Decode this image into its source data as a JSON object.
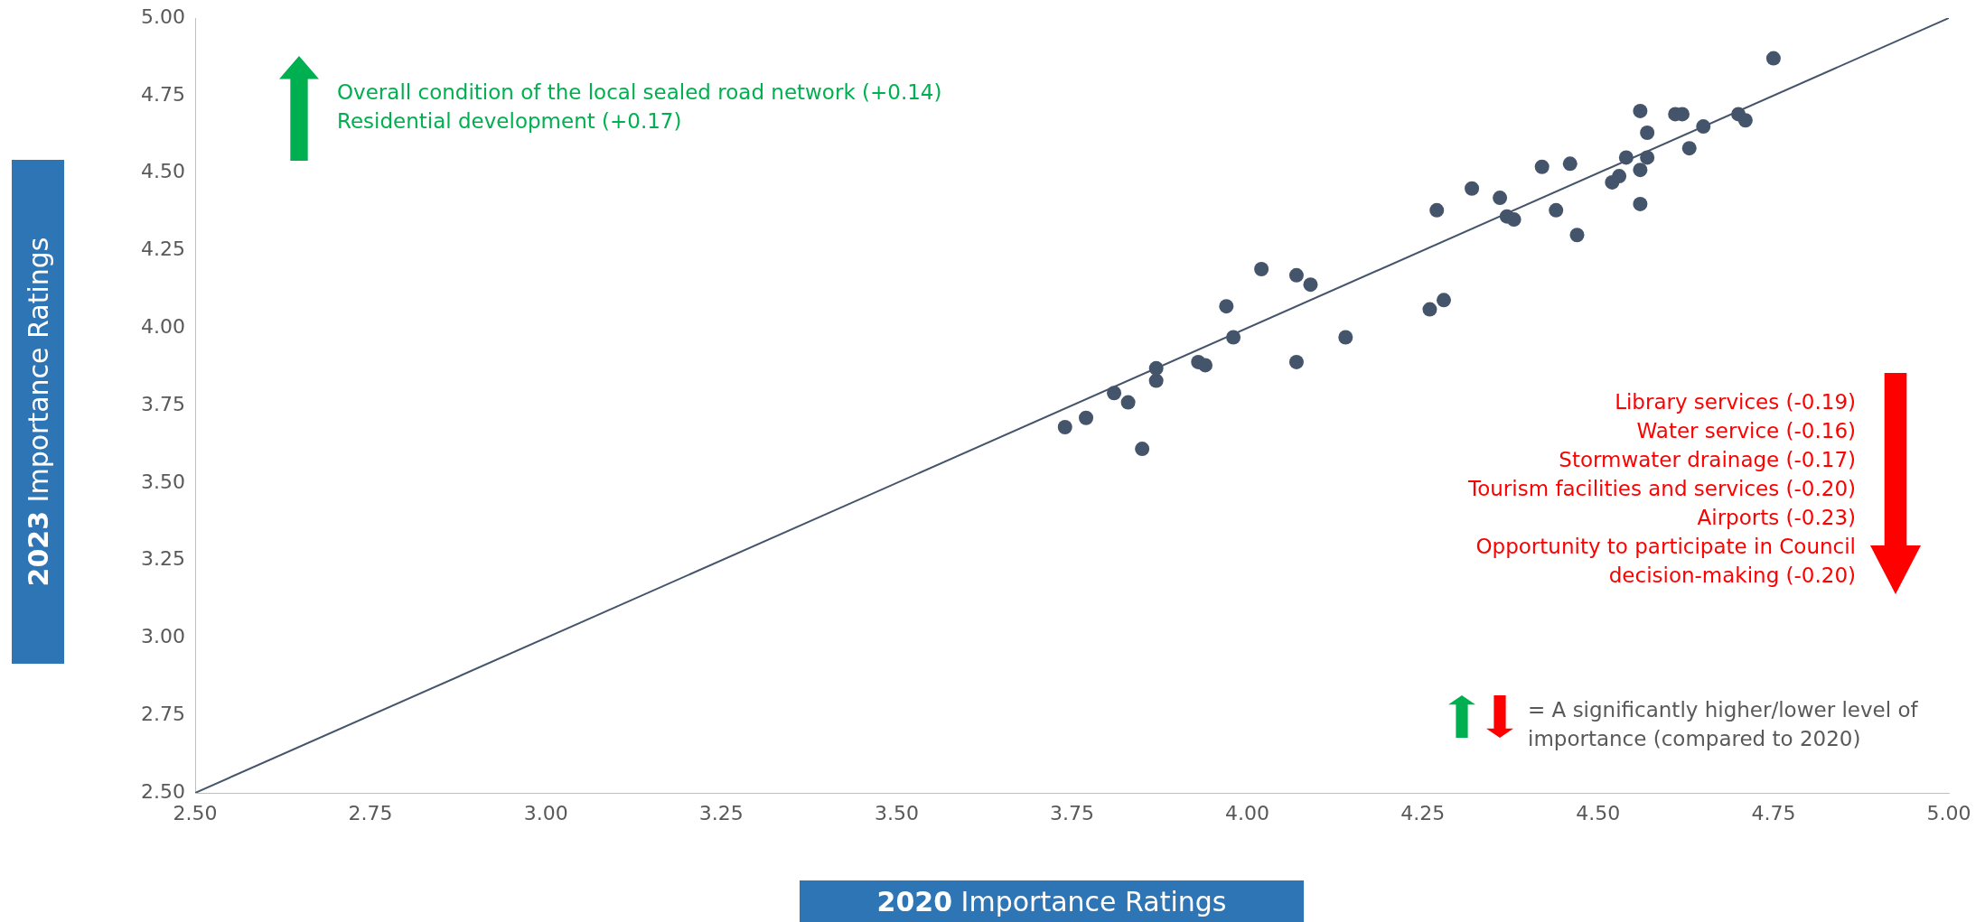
{
  "chart_data": {
    "type": "scatter",
    "xlabel": "2020 Importance Ratings",
    "ylabel": "2023 Importance Ratings",
    "xlim": [
      2.5,
      5
    ],
    "ylim": [
      2.5,
      5
    ],
    "xticks": [
      {
        "value": 2.5,
        "label": "2.50"
      },
      {
        "value": 2.75,
        "label": "2.75"
      },
      {
        "value": 3,
        "label": "3.00"
      },
      {
        "value": 3.25,
        "label": "3.25"
      },
      {
        "value": 3.5,
        "label": "3.50"
      },
      {
        "value": 3.75,
        "label": "3.75"
      },
      {
        "value": 4,
        "label": "4.00"
      },
      {
        "value": 4.25,
        "label": "4.25"
      },
      {
        "value": 4.5,
        "label": "4.50"
      },
      {
        "value": 4.75,
        "label": "4.75"
      },
      {
        "value": 5,
        "label": "5.00"
      }
    ],
    "yticks": [
      {
        "value": 2.5,
        "label": "2.50"
      },
      {
        "value": 2.75,
        "label": "2.75"
      },
      {
        "value": 3,
        "label": "3.00"
      },
      {
        "value": 3.25,
        "label": "3.25"
      },
      {
        "value": 3.5,
        "label": "3.50"
      },
      {
        "value": 3.75,
        "label": "3.75"
      },
      {
        "value": 4,
        "label": "4.00"
      },
      {
        "value": 4.25,
        "label": "4.25"
      },
      {
        "value": 4.5,
        "label": "4.50"
      },
      {
        "value": 4.75,
        "label": "4.75"
      },
      {
        "value": 5,
        "label": "5.00"
      }
    ],
    "grid": false,
    "legend": false,
    "marker": "circle",
    "series": [
      {
        "color": "#44546a",
        "x": [
          3.74,
          3.77,
          3.81,
          3.83,
          3.85,
          3.87,
          3.87,
          3.93,
          3.94,
          3.98,
          3.97,
          4.02,
          4.07,
          4.09,
          4.07,
          4.14,
          4.26,
          4.28,
          4.27,
          4.32,
          4.36,
          4.37,
          4.38,
          4.42,
          4.44,
          4.46,
          4.47,
          4.52,
          4.53,
          4.54,
          4.56,
          4.56,
          4.56,
          4.57,
          4.57,
          4.61,
          4.62,
          4.63,
          4.65,
          4.7,
          4.71,
          4.75
        ],
        "values": [
          3.68,
          3.71,
          3.79,
          3.76,
          3.61,
          3.87,
          3.83,
          3.89,
          3.88,
          3.97,
          4.07,
          4.19,
          4.17,
          4.14,
          3.89,
          3.97,
          4.06,
          4.09,
          4.38,
          4.45,
          4.42,
          4.36,
          4.35,
          4.52,
          4.38,
          4.53,
          4.3,
          4.47,
          4.49,
          4.55,
          4.51,
          4.7,
          4.4,
          4.63,
          4.55,
          4.69,
          4.69,
          4.58,
          4.65,
          4.69,
          4.67,
          4.87
        ]
      },
      {
        "type": "line",
        "color": "#44546a",
        "x": [
          2.5,
          5
        ],
        "values": [
          2.5,
          5
        ],
        "marker": "none"
      }
    ],
    "annotations": [
      "Overall condition of the local sealed road network (+0.14)",
      "Residential development (+0.17)",
      "Library services (-0.19)",
      "Water service (-0.16)",
      "Stormwater drainage (-0.17)",
      "Tourism facilities and services (-0.20)",
      "Airports (-0.23)",
      "Opportunity to participate in Council decision-making (-0.20)",
      "= A significantly higher/lower level of importance (compared to 2020)"
    ]
  }
}
